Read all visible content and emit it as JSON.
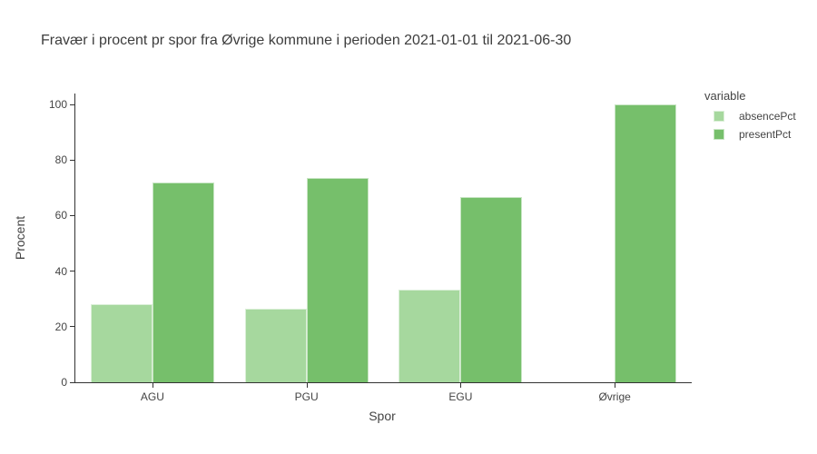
{
  "chart_data": {
    "type": "bar",
    "title": "Fravær i procent pr spor fra Øvrige kommune i perioden 2021-01-01 til 2021-06-30",
    "xlabel": "Spor",
    "ylabel": "Procent",
    "categories": [
      "AGU",
      "PGU",
      "EGU",
      "Øvrige"
    ],
    "series": [
      {
        "name": "absencePct",
        "color": "#a6d89e",
        "values": [
          28.2,
          26.6,
          33.3,
          0
        ]
      },
      {
        "name": "presentPct",
        "color": "#76bf6b",
        "values": [
          71.8,
          73.4,
          66.7,
          100
        ]
      }
    ],
    "legend_title": "variable",
    "legend_position": "right",
    "yticks": [
      0,
      20,
      40,
      60,
      80,
      100
    ],
    "ylim": [
      0,
      104
    ],
    "grid": false,
    "background": "#ffffff",
    "axis_color": "#333333",
    "text_color": "#444444"
  }
}
